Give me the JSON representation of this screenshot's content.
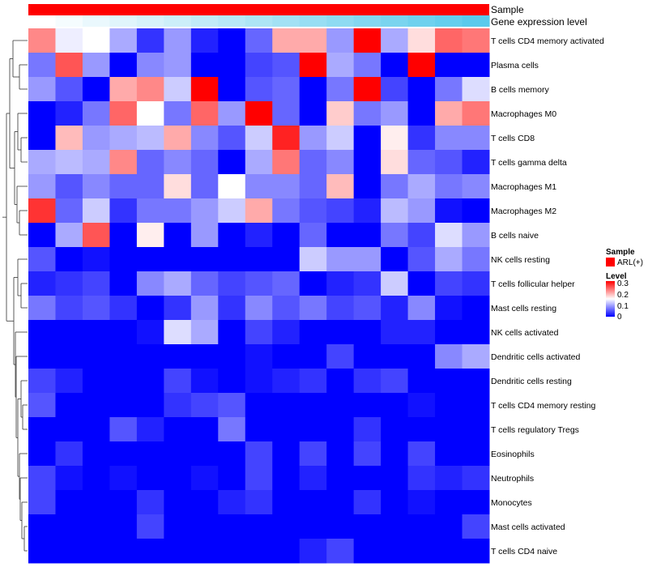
{
  "chart_data": {
    "type": "heatmap",
    "annotation_tracks": {
      "sample_label": "Sample",
      "expression_label": "Gene expression level"
    },
    "rows": [
      "T cells CD4 memory activated",
      "Plasma cells",
      "B cells memory",
      "Macrophages M0",
      "T cells CD8",
      "T cells gamma delta",
      "Macrophages M1",
      "Macrophages M2",
      "B cells naive",
      "NK cells resting",
      "T cells follicular helper",
      "Mast cells resting",
      "NK cells activated",
      "Dendritic cells activated",
      "Dendritic cells resting",
      "T cells CD4 memory resting",
      "T cells regulatory  Tregs",
      "Eosinophils",
      "Neutrophils",
      "Monocytes",
      "Mast cells activated",
      "T cells CD4 naive"
    ],
    "n_columns": 17,
    "values": [
      [
        0.22,
        0.14,
        0.15,
        0.1,
        0.03,
        0.09,
        0.02,
        0.0,
        0.06,
        0.2,
        0.2,
        0.09,
        0.3,
        0.1,
        0.17,
        0.24,
        0.23
      ],
      [
        0.07,
        0.25,
        0.09,
        0.0,
        0.08,
        0.09,
        0.0,
        0.0,
        0.04,
        0.05,
        0.3,
        0.1,
        0.07,
        0.0,
        0.3,
        0.0,
        0.0
      ],
      [
        0.09,
        0.05,
        0.0,
        0.2,
        0.22,
        0.12,
        0.3,
        0.0,
        0.05,
        0.06,
        0.0,
        0.07,
        0.3,
        0.04,
        0.0,
        0.07,
        0.13
      ],
      [
        0.0,
        0.02,
        0.07,
        0.24,
        0.15,
        0.07,
        0.24,
        0.09,
        0.3,
        0.06,
        0.0,
        0.18,
        0.07,
        0.09,
        0.0,
        0.2,
        0.23
      ],
      [
        0.0,
        0.19,
        0.09,
        0.1,
        0.11,
        0.2,
        0.08,
        0.05,
        0.12,
        0.28,
        0.09,
        0.12,
        0.0,
        0.16,
        0.03,
        0.08,
        0.08
      ],
      [
        0.1,
        0.11,
        0.1,
        0.22,
        0.06,
        0.08,
        0.06,
        0.0,
        0.1,
        0.23,
        0.06,
        0.08,
        0.0,
        0.17,
        0.06,
        0.05,
        0.02
      ],
      [
        0.09,
        0.05,
        0.08,
        0.06,
        0.06,
        0.17,
        0.06,
        0.15,
        0.08,
        0.08,
        0.06,
        0.19,
        0.0,
        0.07,
        0.1,
        0.07,
        0.08
      ],
      [
        0.27,
        0.06,
        0.12,
        0.03,
        0.07,
        0.07,
        0.09,
        0.12,
        0.2,
        0.07,
        0.05,
        0.04,
        0.02,
        0.11,
        0.09,
        0.01,
        0.0
      ],
      [
        0.0,
        0.1,
        0.25,
        0.0,
        0.16,
        0.0,
        0.09,
        0.0,
        0.02,
        0.0,
        0.06,
        0.0,
        0.0,
        0.07,
        0.04,
        0.13,
        0.09
      ],
      [
        0.05,
        0.0,
        0.01,
        0.0,
        0.0,
        0.0,
        0.0,
        0.0,
        0.0,
        0.0,
        0.12,
        0.09,
        0.09,
        0.0,
        0.05,
        0.1,
        0.07
      ],
      [
        0.02,
        0.03,
        0.04,
        0.0,
        0.08,
        0.1,
        0.06,
        0.04,
        0.05,
        0.06,
        0.0,
        0.02,
        0.03,
        0.12,
        0.0,
        0.04,
        0.03
      ],
      [
        0.07,
        0.04,
        0.05,
        0.03,
        0.0,
        0.03,
        0.09,
        0.03,
        0.08,
        0.05,
        0.07,
        0.04,
        0.05,
        0.02,
        0.08,
        0.01,
        0.0
      ],
      [
        0.0,
        0.0,
        0.0,
        0.0,
        0.01,
        0.13,
        0.1,
        0.0,
        0.04,
        0.02,
        0.0,
        0.0,
        0.0,
        0.02,
        0.02,
        0.0,
        0.0
      ],
      [
        0.0,
        0.0,
        0.0,
        0.0,
        0.0,
        0.0,
        0.0,
        0.0,
        0.01,
        0.0,
        0.0,
        0.04,
        0.0,
        0.0,
        0.0,
        0.08,
        0.1
      ],
      [
        0.04,
        0.02,
        0.0,
        0.0,
        0.0,
        0.04,
        0.01,
        0.0,
        0.01,
        0.02,
        0.03,
        0.0,
        0.03,
        0.04,
        0.0,
        0.0,
        0.0
      ],
      [
        0.05,
        0.0,
        0.0,
        0.0,
        0.0,
        0.03,
        0.04,
        0.05,
        0.0,
        0.0,
        0.0,
        0.0,
        0.0,
        0.0,
        0.01,
        0.0,
        0.0
      ],
      [
        0.0,
        0.0,
        0.0,
        0.05,
        0.02,
        0.0,
        0.0,
        0.07,
        0.0,
        0.0,
        0.0,
        0.0,
        0.03,
        0.0,
        0.0,
        0.0,
        0.0
      ],
      [
        0.0,
        0.03,
        0.0,
        0.0,
        0.0,
        0.0,
        0.0,
        0.0,
        0.04,
        0.0,
        0.04,
        0.0,
        0.04,
        0.0,
        0.04,
        0.0,
        0.0
      ],
      [
        0.04,
        0.01,
        0.0,
        0.01,
        0.0,
        0.0,
        0.01,
        0.0,
        0.04,
        0.0,
        0.02,
        0.0,
        0.0,
        0.0,
        0.03,
        0.02,
        0.03
      ],
      [
        0.04,
        0.0,
        0.0,
        0.0,
        0.03,
        0.0,
        0.0,
        0.02,
        0.03,
        0.0,
        0.0,
        0.0,
        0.03,
        0.0,
        0.01,
        0.0,
        0.0
      ],
      [
        0.0,
        0.0,
        0.0,
        0.0,
        0.04,
        0.0,
        0.0,
        0.0,
        0.0,
        0.0,
        0.0,
        0.0,
        0.0,
        0.0,
        0.0,
        0.0,
        0.04
      ],
      [
        0.0,
        0.0,
        0.0,
        0.0,
        0.0,
        0.0,
        0.0,
        0.0,
        0.0,
        0.0,
        0.02,
        0.04,
        0.0,
        0.0,
        0.0,
        0.0,
        0.0
      ]
    ],
    "expression_level": [
      0.0,
      0.06,
      0.12,
      0.18,
      0.24,
      0.3,
      0.36,
      0.42,
      0.48,
      0.54,
      0.6,
      0.66,
      0.72,
      0.78,
      0.84,
      0.9,
      0.96
    ],
    "color_scale": {
      "min": 0,
      "mid": 0.15,
      "max": 0.3,
      "low": "#0000ff",
      "mid_color": "#ffffff",
      "high": "#ff0000"
    },
    "legend": {
      "sample_title": "Sample",
      "sample_entry": "ARL(+)",
      "sample_color": "#ff0000",
      "level_title": "Level",
      "level_ticks": [
        "0.3",
        "0.2",
        "0.1",
        "0"
      ]
    },
    "dendrogram_order": [
      0,
      1,
      2,
      3,
      4,
      5,
      6,
      7,
      8,
      9,
      10,
      11,
      12,
      13,
      14,
      15,
      16,
      17,
      18,
      19,
      20,
      21
    ]
  }
}
